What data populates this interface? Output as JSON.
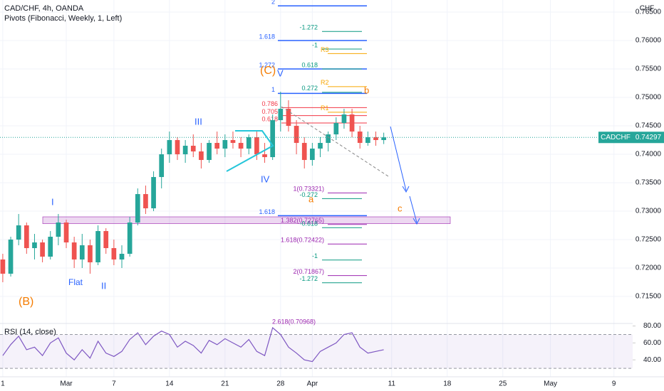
{
  "chart_data": {
    "type": "candlestick",
    "title": "CAD/CHF, 4h, OANDA",
    "subtitle": "Pivots (Fibonacci, Weekly, 1, Left)",
    "currency_label": "CHF",
    "symbol_label": "CADCHF",
    "x": [
      -8,
      -7,
      -6,
      -5,
      -4,
      -3,
      -2,
      -1,
      0,
      1,
      2,
      3,
      4,
      5,
      6,
      7,
      8,
      9,
      10,
      11,
      12,
      13,
      14,
      15,
      16,
      17,
      18,
      19,
      20,
      21,
      22,
      23,
      24,
      25,
      26,
      27,
      28,
      29,
      30,
      31,
      32,
      33,
      34,
      35,
      36,
      37,
      38,
      39,
      40
    ],
    "open": [
      0.7215,
      0.719,
      0.725,
      0.7275,
      0.7235,
      0.7245,
      0.722,
      0.7255,
      0.728,
      0.7245,
      0.7215,
      0.724,
      0.721,
      0.7265,
      0.7235,
      0.7215,
      0.7225,
      0.728,
      0.733,
      0.7305,
      0.736,
      0.74,
      0.7425,
      0.74,
      0.7415,
      0.7405,
      0.739,
      0.742,
      0.741,
      0.7425,
      0.742,
      0.741,
      0.743,
      0.74,
      0.7395,
      0.746,
      0.748,
      0.745,
      0.742,
      0.739,
      0.741,
      0.742,
      0.7435,
      0.7455,
      0.747,
      0.744,
      0.742,
      0.743,
      0.7425
    ],
    "high": [
      0.7225,
      0.7255,
      0.7295,
      0.728,
      0.726,
      0.725,
      0.7265,
      0.7295,
      0.7285,
      0.7255,
      0.726,
      0.725,
      0.7275,
      0.727,
      0.725,
      0.724,
      0.729,
      0.734,
      0.7345,
      0.737,
      0.741,
      0.744,
      0.743,
      0.7425,
      0.7435,
      0.742,
      0.7425,
      0.744,
      0.7435,
      0.744,
      0.743,
      0.7435,
      0.744,
      0.742,
      0.747,
      0.751,
      0.7495,
      0.746,
      0.743,
      0.742,
      0.743,
      0.744,
      0.7465,
      0.748,
      0.748,
      0.745,
      0.744,
      0.744,
      0.7438
    ],
    "low": [
      0.7175,
      0.7185,
      0.724,
      0.7225,
      0.7215,
      0.721,
      0.7215,
      0.724,
      0.7235,
      0.72,
      0.72,
      0.719,
      0.7205,
      0.7225,
      0.7205,
      0.72,
      0.722,
      0.7275,
      0.7295,
      0.73,
      0.734,
      0.7385,
      0.739,
      0.7385,
      0.7395,
      0.7375,
      0.7385,
      0.74,
      0.7395,
      0.741,
      0.7395,
      0.74,
      0.739,
      0.7385,
      0.739,
      0.744,
      0.744,
      0.74,
      0.7375,
      0.738,
      0.7395,
      0.7405,
      0.7425,
      0.7445,
      0.743,
      0.741,
      0.7415,
      0.7415,
      0.7418
    ],
    "close": [
      0.719,
      0.725,
      0.7275,
      0.7235,
      0.7245,
      0.722,
      0.7255,
      0.728,
      0.7245,
      0.7215,
      0.724,
      0.721,
      0.7265,
      0.7235,
      0.7215,
      0.7225,
      0.728,
      0.733,
      0.7305,
      0.736,
      0.74,
      0.7425,
      0.74,
      0.7415,
      0.7405,
      0.739,
      0.742,
      0.741,
      0.7425,
      0.742,
      0.741,
      0.743,
      0.74,
      0.7395,
      0.746,
      0.748,
      0.745,
      0.742,
      0.739,
      0.741,
      0.742,
      0.7435,
      0.7455,
      0.747,
      0.744,
      0.742,
      0.743,
      0.7425,
      0.74297
    ],
    "up_color": "#26a69a",
    "down_color": "#ef5350",
    "xlim": [
      -8.35,
      71.36
    ],
    "xticks": [
      {
        "value": -8,
        "label": "1"
      },
      {
        "value": 0,
        "label": "Mar"
      },
      {
        "value": 6,
        "label": "7"
      },
      {
        "value": 13,
        "label": "14"
      },
      {
        "value": 20,
        "label": "21"
      },
      {
        "value": 27,
        "label": "28"
      },
      {
        "value": 31,
        "label": "Apr"
      },
      {
        "value": 41,
        "label": "11"
      },
      {
        "value": 48,
        "label": "18"
      },
      {
        "value": 55,
        "label": "25"
      },
      {
        "value": 61,
        "label": "May"
      },
      {
        "value": 69,
        "label": "9"
      }
    ],
    "ylim": [
      0.71025,
      0.76713
    ],
    "yticks": [
      {
        "value": 0.715,
        "label": "0.71500"
      },
      {
        "value": 0.72,
        "label": "0.72000"
      },
      {
        "value": 0.725,
        "label": "0.72500"
      },
      {
        "value": 0.73,
        "label": "0.73000"
      },
      {
        "value": 0.735,
        "label": "0.73500"
      },
      {
        "value": 0.74,
        "label": "0.74000"
      },
      {
        "value": 0.745,
        "label": "0.74500"
      },
      {
        "value": 0.75,
        "label": "0.75000"
      },
      {
        "value": 0.755,
        "label": "0.75500"
      },
      {
        "value": 0.76,
        "label": "0.76000"
      },
      {
        "value": 0.765,
        "label": "0.76500"
      }
    ],
    "grid": true,
    "zone": [
      0.7278,
      0.729
    ],
    "levels": [
      {
        "label": "2",
        "value": 0.7661,
        "color": "#2962ff"
      },
      {
        "label": "1.618",
        "value": 0.76,
        "color": "#2962ff"
      },
      {
        "label": "1.272",
        "value": 0.755,
        "color": "#2962ff"
      },
      {
        "label": "1",
        "value": 0.7507,
        "color": "#2962ff"
      },
      {
        "label": "1.618",
        "value": 0.7292,
        "color": "#2962ff"
      },
      {
        "label": "-1.272",
        "value": 0.7616,
        "color": "#089981"
      },
      {
        "label": "-1",
        "value": 0.7585,
        "color": "#089981"
      },
      {
        "label": "0.618",
        "value": 0.755,
        "color": "#089981"
      },
      {
        "label": "0.272",
        "value": 0.7509,
        "color": "#089981"
      },
      {
        "label": "-0.272",
        "value": 0.7322,
        "color": "#089981"
      },
      {
        "label": "-0.618",
        "value": 0.7271,
        "color": "#089981"
      },
      {
        "label": "-1",
        "value": 0.7214,
        "color": "#089981"
      },
      {
        "label": "-1.272",
        "value": 0.7174,
        "color": "#089981"
      },
      {
        "label": "0.786",
        "value": 0.7482,
        "color": "#f23645"
      },
      {
        "label": "0.705",
        "value": 0.7468,
        "color": "#f23645"
      },
      {
        "label": "0.618",
        "value": 0.7455,
        "color": "#f23645"
      },
      {
        "label": "1(0.73321)",
        "value": 0.73321,
        "color": "#9c27b0"
      },
      {
        "label": "1.382(0.72765)",
        "value": 0.72765,
        "color": "#9c27b0"
      },
      {
        "label": "1.618(0.72422)",
        "value": 0.72422,
        "color": "#9c27b0"
      },
      {
        "label": "2(0.71867)",
        "value": 0.71867,
        "color": "#9c27b0"
      },
      {
        "label": "R3",
        "value": 0.7577,
        "color": "#f7a600"
      },
      {
        "label": "R2",
        "value": 0.7519,
        "color": "#f7a600"
      },
      {
        "label": "R1",
        "value": 0.7474,
        "color": "#f7a600"
      }
    ],
    "annotations": [
      "(C)",
      "(B)",
      "I",
      "II",
      "III",
      "IV",
      "V",
      "Flat",
      "a",
      "b",
      "c",
      "2.618(0.70968)"
    ],
    "rsi": {
      "title": "RSI (14, close)",
      "color": "#7e57c2",
      "values": [
        45,
        58,
        68,
        52,
        55,
        45,
        60,
        66,
        48,
        40,
        52,
        42,
        62,
        48,
        44,
        50,
        64,
        72,
        58,
        68,
        74,
        70,
        55,
        62,
        57,
        48,
        63,
        58,
        65,
        60,
        55,
        64,
        50,
        45,
        78,
        70,
        55,
        48,
        40,
        38,
        50,
        55,
        60,
        70,
        72,
        55,
        48,
        50,
        52
      ],
      "ylim": [
        20,
        83
      ],
      "yticks": [
        {
          "value": 40,
          "label": "40.00"
        },
        {
          "value": 60,
          "label": "60.00"
        },
        {
          "value": 80,
          "label": "80.00"
        }
      ],
      "levels": [
        70,
        30
      ]
    }
  }
}
